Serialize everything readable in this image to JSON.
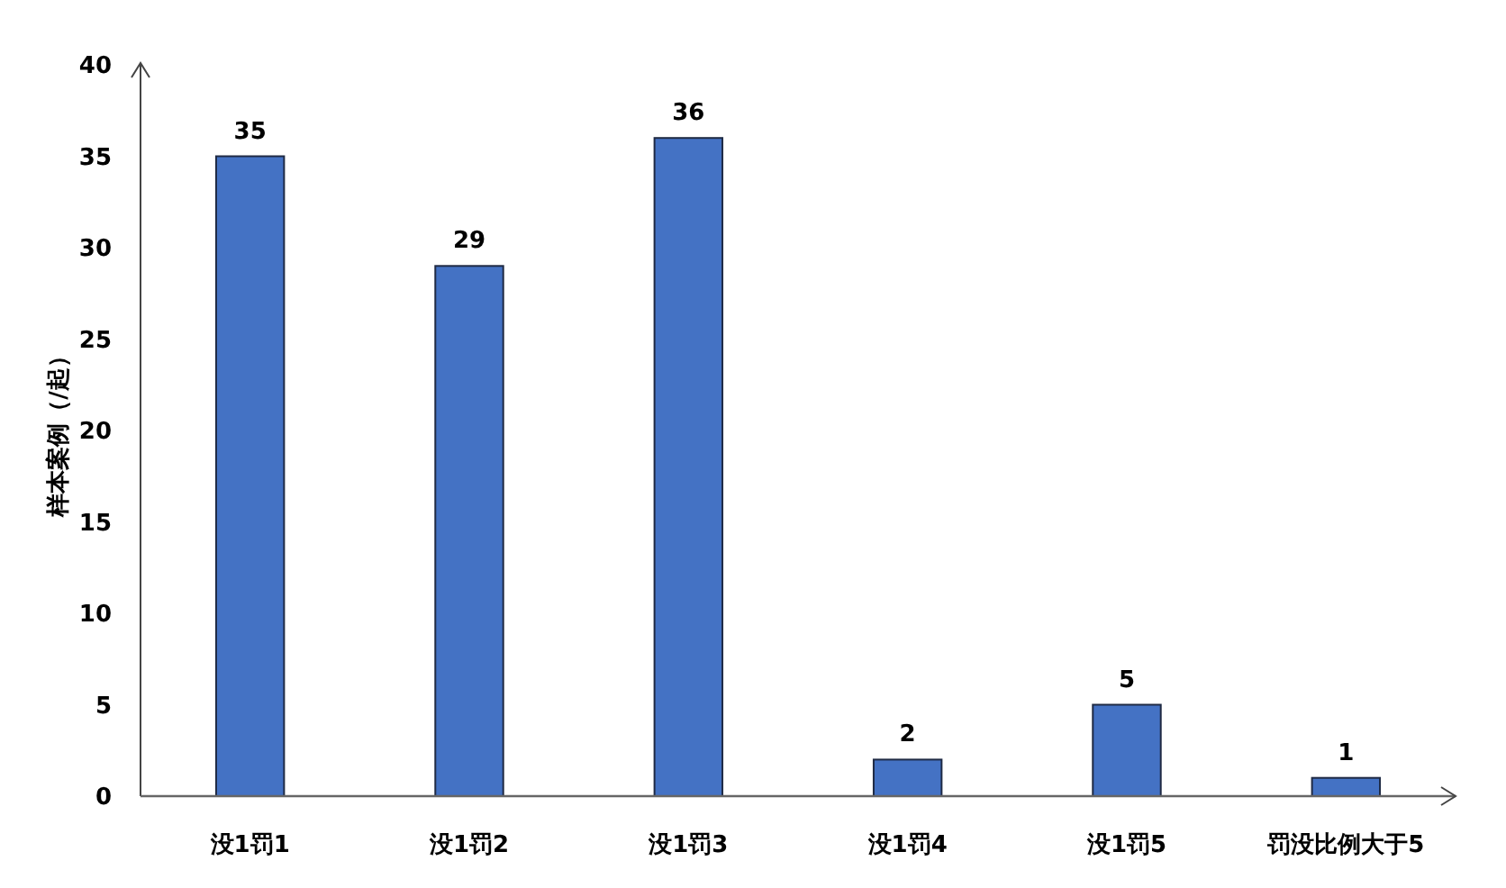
{
  "chart_data": {
    "type": "bar",
    "ylabel": "样本案例（/起）",
    "categories": [
      "没1罚1",
      "没1罚2",
      "没1罚3",
      "没1罚4",
      "没1罚5",
      "罚没比例大于5"
    ],
    "values": [
      35,
      29,
      36,
      2,
      5,
      1
    ],
    "color": "#4472c4",
    "ylim": [
      0,
      40
    ],
    "yticks": [
      0,
      5,
      10,
      15,
      20,
      25,
      30,
      35,
      40
    ],
    "data_labels": true
  }
}
